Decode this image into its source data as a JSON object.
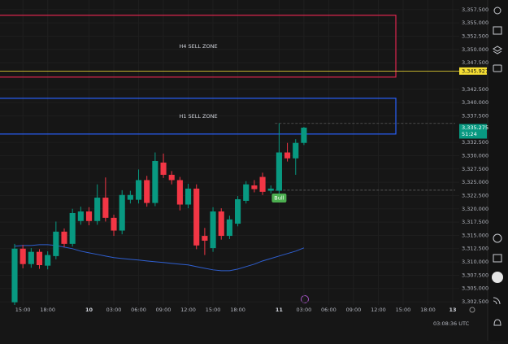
{
  "chart_data": {
    "type": "candlestick",
    "up_color": "#089981",
    "down_color": "#f23645",
    "open": [
      3302.4,
      3312.5,
      3309.6,
      3311.9,
      3309.3,
      3311.1,
      3315.7,
      3313.4,
      3317.7,
      3319.5,
      3317.7,
      3322.1,
      3318.3,
      3315.9,
      3321.7,
      3321.7,
      3325.4,
      3321.1,
      3328.7,
      3326.4,
      3325.4,
      3320.8,
      3323.8,
      3314.9,
      3312.6,
      3319.5,
      3314.9,
      3317.2,
      3321.5,
      3324.4,
      3326.0,
      3323.4,
      3323.4,
      3330.6,
      3329.5,
      3332.4
    ],
    "high": [
      3313.4,
      3313.2,
      3312.6,
      3312.4,
      3312.0,
      3317.6,
      3316.3,
      3320.0,
      3320.4,
      3320.3,
      3324.6,
      3325.9,
      3318.9,
      3323.5,
      3323.4,
      3327.4,
      3326.2,
      3330.6,
      3330.4,
      3327.1,
      3326.0,
      3324.7,
      3324.6,
      3316.4,
      3320.3,
      3320.1,
      3318.7,
      3322.4,
      3325.2,
      3325.4,
      3326.8,
      3324.4,
      3336.1,
      3332.4,
      3333.1,
      3335.4
    ],
    "low": [
      3301.9,
      3308.8,
      3308.9,
      3308.7,
      3308.6,
      3310.5,
      3312.8,
      3312.9,
      3317.0,
      3316.9,
      3317.0,
      3317.6,
      3314.9,
      3315.2,
      3321.0,
      3321.0,
      3320.4,
      3320.5,
      3325.8,
      3324.6,
      3319.7,
      3320.1,
      3312.4,
      3311.3,
      3311.9,
      3314.2,
      3314.3,
      3316.7,
      3321.0,
      3323.1,
      3322.6,
      3322.9,
      3322.8,
      3328.9,
      3326.4,
      3332.0
    ],
    "close": [
      3312.5,
      3309.6,
      3311.9,
      3309.4,
      3311.3,
      3315.7,
      3313.4,
      3319.2,
      3319.5,
      3317.7,
      3322.1,
      3318.3,
      3315.9,
      3322.6,
      3322.6,
      3325.4,
      3321.1,
      3329.0,
      3326.4,
      3325.4,
      3320.8,
      3323.8,
      3313.1,
      3314.0,
      3319.5,
      3314.9,
      3318.0,
      3321.8,
      3324.6,
      3323.7,
      3323.2,
      3323.8,
      3330.6,
      3329.5,
      3332.4,
      3335.275
    ],
    "ma": {
      "color": "#2f5fd0",
      "values": [
        3312.95,
        3313.1,
        3313.1,
        3313.25,
        3313.25,
        3313.1,
        3312.79,
        3312.49,
        3312.03,
        3311.72,
        3311.42,
        3311.11,
        3310.81,
        3310.65,
        3310.5,
        3310.35,
        3310.19,
        3310.04,
        3309.89,
        3309.73,
        3309.58,
        3309.43,
        3309.12,
        3308.81,
        3308.51,
        3308.35,
        3308.35,
        3308.66,
        3309.12,
        3309.58,
        3310.19,
        3310.65,
        3311.11,
        3311.57,
        3312.03,
        3312.64
      ]
    },
    "xlim": [
      -1.77,
      53.79
    ],
    "xticks": [
      {
        "value": 1,
        "label": "15:00"
      },
      {
        "value": 4,
        "label": "18:00"
      },
      {
        "value": 9,
        "label": "10"
      },
      {
        "value": 12,
        "label": "03:00"
      },
      {
        "value": 15,
        "label": "06:00"
      },
      {
        "value": 18,
        "label": "09:00"
      },
      {
        "value": 21,
        "label": "12:00"
      },
      {
        "value": 24,
        "label": "15:00"
      },
      {
        "value": 27,
        "label": "18:00"
      },
      {
        "value": 32,
        "label": "11"
      },
      {
        "value": 35,
        "label": "03:00"
      },
      {
        "value": 38,
        "label": "06:00"
      },
      {
        "value": 41,
        "label": "09:00"
      },
      {
        "value": 44,
        "label": "12:00"
      },
      {
        "value": 47,
        "label": "15:00"
      },
      {
        "value": 50,
        "label": "18:00"
      },
      {
        "value": 53,
        "label": "13"
      }
    ],
    "ylim": [
      3301.9,
      3359.3
    ],
    "yticks": [
      {
        "value": 3357.5,
        "label": "3,357.500"
      },
      {
        "value": 3355,
        "label": "3,355.000"
      },
      {
        "value": 3352.5,
        "label": "3,352.500"
      },
      {
        "value": 3350,
        "label": "3,350.000"
      },
      {
        "value": 3347.5,
        "label": "3,347.500"
      },
      {
        "value": 3342.5,
        "label": "3,342.500"
      },
      {
        "value": 3340,
        "label": "3,340.000"
      },
      {
        "value": 3337.5,
        "label": "3,337.500"
      },
      {
        "value": 3332.5,
        "label": "3,332.500"
      },
      {
        "value": 3330,
        "label": "3,330.000"
      },
      {
        "value": 3327.5,
        "label": "3,327.500"
      },
      {
        "value": 3325,
        "label": "3,325.000"
      },
      {
        "value": 3322.5,
        "label": "3,322.500"
      },
      {
        "value": 3320,
        "label": "3,320.000"
      },
      {
        "value": 3317.5,
        "label": "3,317.500"
      },
      {
        "value": 3315,
        "label": "3,315.000"
      },
      {
        "value": 3312.5,
        "label": "3,312.500"
      },
      {
        "value": 3310,
        "label": "3,310.000"
      },
      {
        "value": 3307.5,
        "label": "3,307.500"
      },
      {
        "value": 3305,
        "label": "3,305.000"
      },
      {
        "value": 3302.5,
        "label": "3,302.500"
      }
    ],
    "grid": true,
    "zones": [
      {
        "label": "H4 SELL ZONE",
        "top": 3356.43,
        "bottom": 3344.79,
        "color": "#e0264f"
      },
      {
        "label": "H1 SELL ZONE",
        "top": 3340.8,
        "bottom": 3334.07,
        "color": "#2962ff"
      }
    ],
    "price_labels": [
      {
        "value": 3345.927,
        "label": "3,345.927",
        "color": "#f7e034"
      },
      {
        "value": 3335.275,
        "label": "3,335.275",
        "sublabel": "51:24",
        "color": "#089981"
      }
    ],
    "dashed_levels": [
      3336.06,
      3323.5
    ],
    "signal": {
      "text": "Bull",
      "index": 32,
      "price": 3322.1,
      "color": "#4caf50"
    },
    "clock": "03:08:36 UTC"
  }
}
